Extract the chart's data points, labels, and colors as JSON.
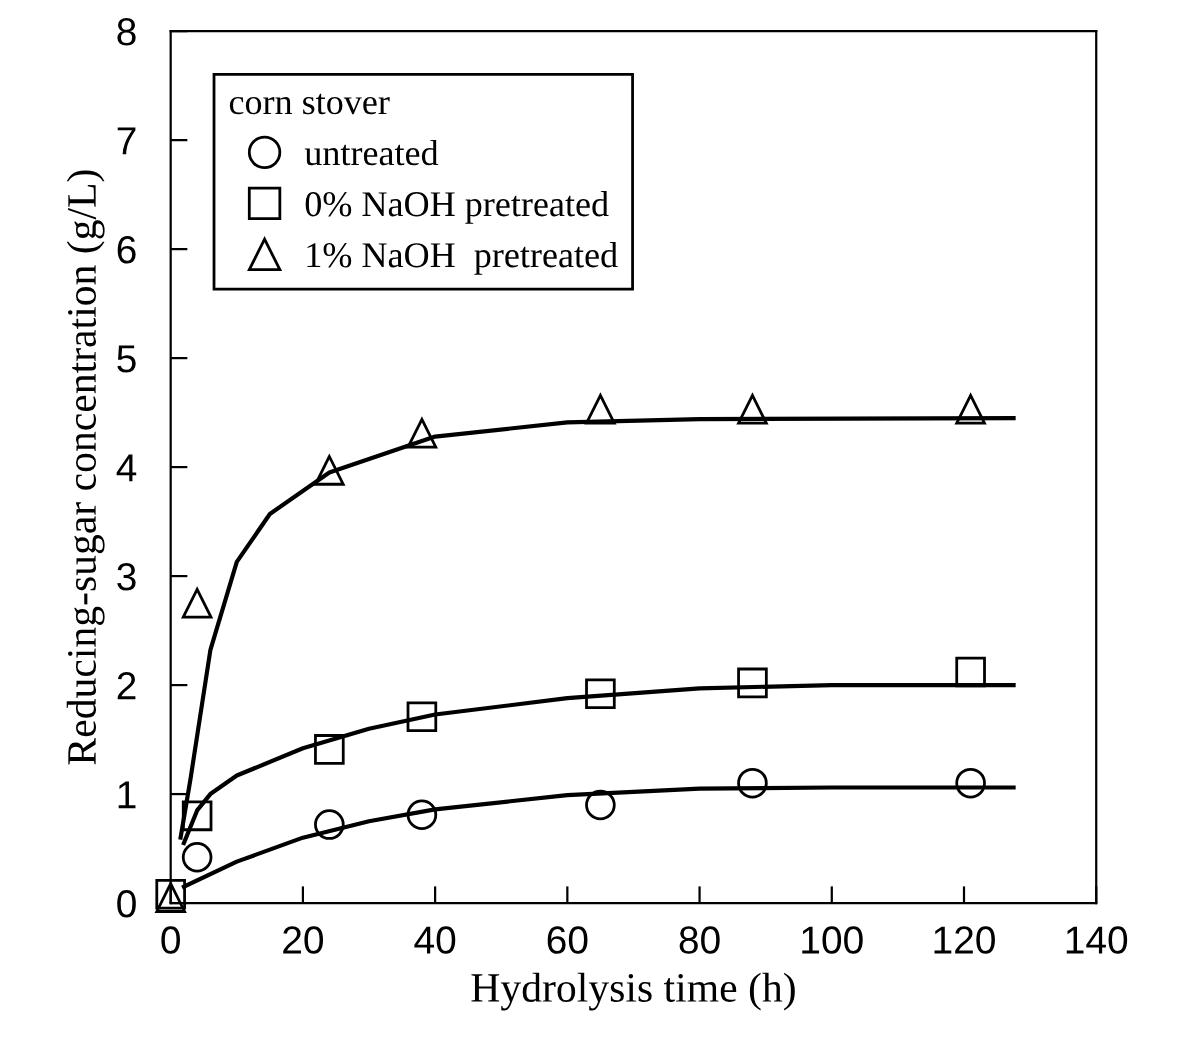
{
  "chart_data": {
    "type": "scatter",
    "xlabel": "Hydrolysis time (h)",
    "ylabel": "Reducing-sugar concentration (g/L)",
    "legend_title": "corn stover",
    "legend": "top left",
    "grid": false,
    "xlim": [
      0,
      140
    ],
    "xticks": [
      0,
      20,
      40,
      60,
      80,
      100,
      120,
      140
    ],
    "ylim": [
      0,
      8
    ],
    "yticks": [
      0,
      1,
      2,
      3,
      4,
      5,
      6,
      7,
      8
    ],
    "series": [
      {
        "name": "untreated",
        "color": "#000000",
        "marker": "circle",
        "x": [
          4,
          24,
          38,
          65,
          88,
          121
        ],
        "values": [
          0.42,
          0.72,
          0.81,
          0.9,
          1.1,
          1.1
        ]
      },
      {
        "name": "0% NaOH pretreated",
        "color": "#000000",
        "marker": "square",
        "x": [
          0,
          4,
          24,
          38,
          65,
          88,
          121
        ],
        "values": [
          0.08,
          0.8,
          1.41,
          1.71,
          1.92,
          2.02,
          2.12
        ]
      },
      {
        "name": "1% NaOH  pretreated",
        "color": "#000000",
        "marker": "triangle",
        "x": [
          0,
          4,
          24,
          38,
          65,
          88,
          121
        ],
        "values": [
          0.05,
          2.75,
          3.97,
          4.31,
          4.53,
          4.53,
          4.53
        ]
      },
      {
        "type": "line",
        "color": "#000000",
        "marker": "none",
        "x": [
          2,
          10,
          20,
          30,
          40,
          60,
          80,
          100,
          127.5
        ],
        "values": [
          0.15,
          0.38,
          0.6,
          0.75,
          0.86,
          0.99,
          1.05,
          1.06,
          1.06
        ]
      },
      {
        "type": "line",
        "color": "#000000",
        "marker": "none",
        "x": [
          2,
          4,
          6,
          10,
          20,
          30,
          40,
          60,
          80,
          100,
          127.5
        ],
        "values": [
          0.55,
          0.85,
          1.0,
          1.17,
          1.42,
          1.6,
          1.73,
          1.88,
          1.97,
          2.0,
          2.0
        ]
      },
      {
        "type": "line",
        "color": "#000000",
        "marker": "none",
        "x": [
          1.5,
          3,
          6,
          10,
          15,
          24,
          40,
          60,
          80,
          127.5
        ],
        "values": [
          0.6,
          1.14,
          2.32,
          3.13,
          3.57,
          3.95,
          4.28,
          4.41,
          4.44,
          4.45
        ]
      }
    ]
  }
}
